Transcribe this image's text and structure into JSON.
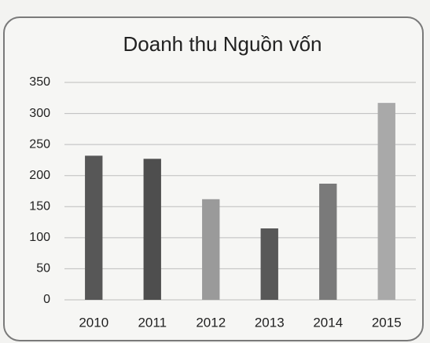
{
  "chart_data": {
    "type": "bar",
    "title": "Doanh thu Nguồn vốn",
    "categories": [
      "2010",
      "2011",
      "2012",
      "2013",
      "2014",
      "2015"
    ],
    "values": [
      232,
      227,
      162,
      115,
      187,
      317
    ],
    "colors": [
      "#575757",
      "#4e4e4e",
      "#9a9a9a",
      "#585858",
      "#7a7a7a",
      "#a9a9a9"
    ],
    "ylim": [
      0,
      350
    ],
    "yticks": [
      0,
      50,
      100,
      150,
      200,
      250,
      300,
      350
    ],
    "grid": true
  }
}
